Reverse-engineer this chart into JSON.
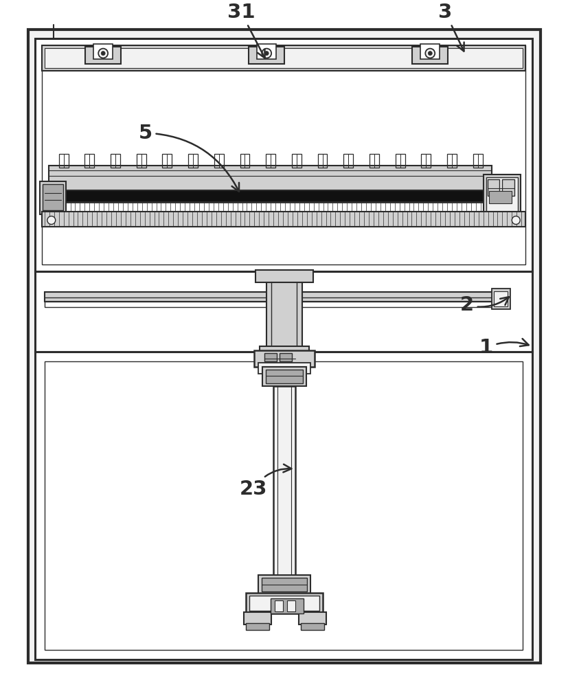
{
  "bg_color": "#ffffff",
  "lc": "#2c2c2c",
  "fill_white": "#ffffff",
  "fill_light": "#f2f2f2",
  "fill_mid": "#d0d0d0",
  "fill_dark": "#555555",
  "fill_black": "#111111",
  "fill_gray": "#aaaaaa"
}
